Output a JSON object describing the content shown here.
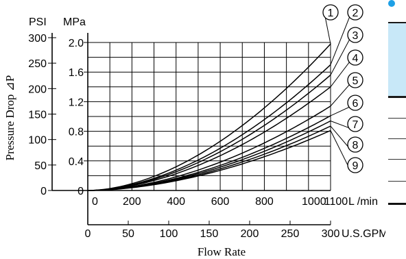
{
  "chart_data": {
    "type": "line",
    "ylabel": "Pressure Drop ⊿P",
    "xlabel": "Flow Rate",
    "y_units": [
      "PSI",
      "MPa"
    ],
    "y_ticks_psi": [
      0,
      50,
      100,
      150,
      200,
      250,
      300
    ],
    "y_ticks_mpa": [
      "0",
      "0.4",
      "0.8",
      "1.2",
      "1.6",
      "2.0"
    ],
    "x_ticks_lpm": [
      "0",
      "200",
      "400",
      "600",
      "800",
      "1000",
      "1100"
    ],
    "x_unit_lpm": "L /min",
    "x_ticks_gpm": [
      "0",
      "50",
      "100",
      "150",
      "200",
      "250",
      "300"
    ],
    "x_unit_gpm": "U.S.GPM",
    "xlim_lpm": [
      0,
      1100
    ],
    "ylim_mpa": [
      0,
      2.1
    ],
    "grid": true,
    "series": [
      {
        "name": "1",
        "x": [
          0,
          1100
        ],
        "end_mpa": 1.98
      },
      {
        "name": "2",
        "x": [
          0,
          1100
        ],
        "end_mpa": 1.7
      },
      {
        "name": "3",
        "x": [
          0,
          1100
        ],
        "end_mpa": 1.56
      },
      {
        "name": "4",
        "x": [
          0,
          1100
        ],
        "end_mpa": 1.4
      },
      {
        "name": "5",
        "x": [
          0,
          1100
        ],
        "end_mpa": 1.14
      },
      {
        "name": "6",
        "x": [
          0,
          1100
        ],
        "end_mpa": 1.01
      },
      {
        "name": "7",
        "x": [
          0,
          1100
        ],
        "end_mpa": 0.94
      },
      {
        "name": "8",
        "x": [
          0,
          1100
        ],
        "end_mpa": 0.87
      },
      {
        "name": "9",
        "x": [
          0,
          1100
        ],
        "end_mpa": 0.81
      }
    ]
  }
}
